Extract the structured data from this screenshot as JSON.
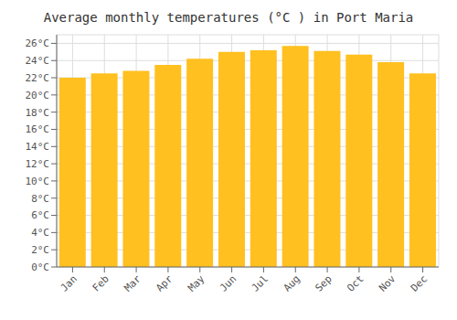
{
  "chart_data": {
    "type": "bar",
    "title": "Average monthly temperatures (°C ) in Port Maria",
    "categories": [
      "Jan",
      "Feb",
      "Mar",
      "Apr",
      "May",
      "Jun",
      "Jul",
      "Aug",
      "Sep",
      "Oct",
      "Nov",
      "Dec"
    ],
    "values": [
      22.0,
      22.5,
      22.8,
      23.5,
      24.2,
      25.0,
      25.2,
      25.7,
      25.1,
      24.7,
      23.8,
      22.5
    ],
    "color": "#FFC020",
    "ylim": [
      0,
      27
    ],
    "yticks": [
      {
        "value": 0,
        "label": "0°C"
      },
      {
        "value": 2,
        "label": "2°C"
      },
      {
        "value": 4,
        "label": "4°C"
      },
      {
        "value": 6,
        "label": "6°C"
      },
      {
        "value": 8,
        "label": "8°C"
      },
      {
        "value": 10,
        "label": "10°C"
      },
      {
        "value": 12,
        "label": "12°C"
      },
      {
        "value": 14,
        "label": "14°C"
      },
      {
        "value": 16,
        "label": "16°C"
      },
      {
        "value": 18,
        "label": "18°C"
      },
      {
        "value": 20,
        "label": "20°C"
      },
      {
        "value": 22,
        "label": "22°C"
      },
      {
        "value": 24,
        "label": "24°C"
      },
      {
        "value": 26,
        "label": "26°C"
      }
    ],
    "grid": true
  }
}
